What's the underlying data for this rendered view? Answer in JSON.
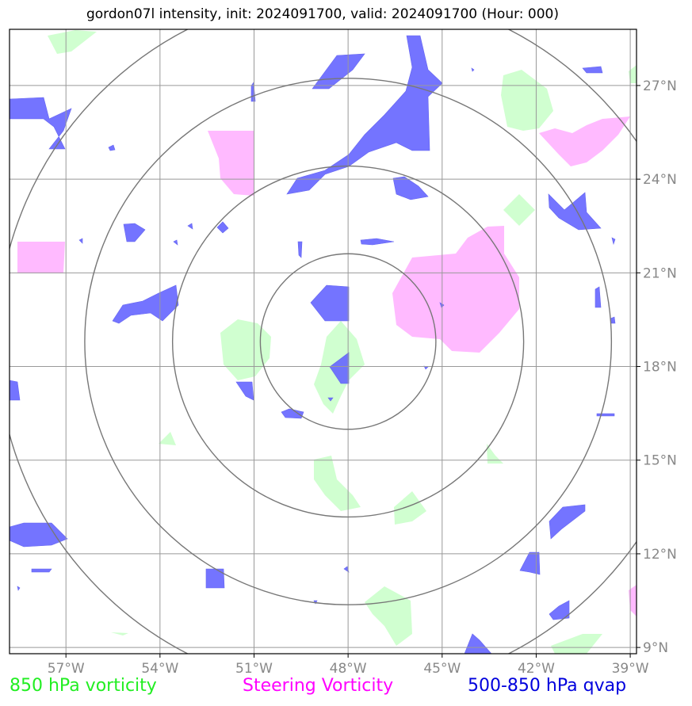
{
  "title": "gordon07l intensity, init: 2024091700, valid: 2024091700 (Hour: 000)",
  "map": {
    "lon_range": [
      -58.8,
      -38.8
    ],
    "lat_range": [
      8.8,
      28.8
    ],
    "lon_ticks": [
      {
        "value": -57,
        "label": "57°W"
      },
      {
        "value": -54,
        "label": "54°W"
      },
      {
        "value": -51,
        "label": "51°W"
      },
      {
        "value": -48,
        "label": "48°W"
      },
      {
        "value": -45,
        "label": "45°W"
      },
      {
        "value": -42,
        "label": "42°W"
      },
      {
        "value": -39,
        "label": "39°W"
      }
    ],
    "lat_ticks": [
      {
        "value": 27,
        "label": "27°N"
      },
      {
        "value": 24,
        "label": "24°N"
      },
      {
        "value": 21,
        "label": "21°N"
      },
      {
        "value": 18,
        "label": "18°N"
      },
      {
        "value": 15,
        "label": "15°N"
      },
      {
        "value": 12,
        "label": "12°N"
      },
      {
        "value": 9,
        "label": "9°N"
      }
    ],
    "grid": true,
    "storm_center": {
      "lon": -48.0,
      "lat": 18.8
    },
    "range_rings_deg": [
      2.8,
      5.6,
      8.4,
      11.2
    ],
    "colors": {
      "vorticity_850": "#c8ffc8",
      "steering_vorticity": "#ffb3ff",
      "qvap": "#6666ff",
      "grid": "#999999",
      "rings": "#777777",
      "tick_label": "#888888"
    }
  },
  "legend": {
    "vorticity_850": "850 hPa vorticity",
    "steering": "Steering Vorticity",
    "qvap": "500-850 hPa qvap"
  }
}
